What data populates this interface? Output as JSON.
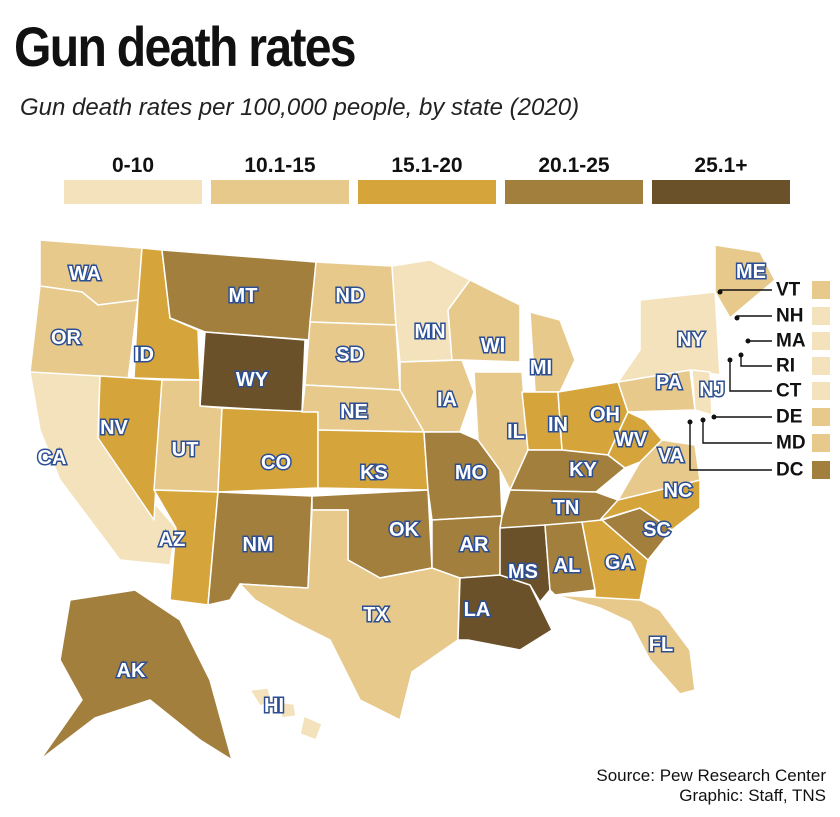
{
  "title": "Gun death rates",
  "subtitle": "Gun death rates per 100,000 people, by state (2020)",
  "legend": [
    {
      "label": "0-10",
      "color": "#f3e2bb"
    },
    {
      "label": "10.1-15",
      "color": "#e8c98c"
    },
    {
      "label": "15.1-20",
      "color": "#d5a53c"
    },
    {
      "label": "20.1-25",
      "color": "#a37f3e"
    },
    {
      "label": "25.1+",
      "color": "#6b5129"
    }
  ],
  "states": [
    {
      "abbr": "WA",
      "bin": 1
    },
    {
      "abbr": "OR",
      "bin": 1
    },
    {
      "abbr": "CA",
      "bin": 0
    },
    {
      "abbr": "NV",
      "bin": 2
    },
    {
      "abbr": "ID",
      "bin": 2
    },
    {
      "abbr": "MT",
      "bin": 3
    },
    {
      "abbr": "WY",
      "bin": 4
    },
    {
      "abbr": "UT",
      "bin": 1
    },
    {
      "abbr": "AZ",
      "bin": 2
    },
    {
      "abbr": "CO",
      "bin": 2
    },
    {
      "abbr": "NM",
      "bin": 3
    },
    {
      "abbr": "ND",
      "bin": 1
    },
    {
      "abbr": "SD",
      "bin": 1
    },
    {
      "abbr": "NE",
      "bin": 1
    },
    {
      "abbr": "KS",
      "bin": 2
    },
    {
      "abbr": "OK",
      "bin": 3
    },
    {
      "abbr": "TX",
      "bin": 1
    },
    {
      "abbr": "MN",
      "bin": 0
    },
    {
      "abbr": "IA",
      "bin": 1
    },
    {
      "abbr": "MO",
      "bin": 3
    },
    {
      "abbr": "AR",
      "bin": 3
    },
    {
      "abbr": "LA",
      "bin": 4
    },
    {
      "abbr": "WI",
      "bin": 1
    },
    {
      "abbr": "IL",
      "bin": 1
    },
    {
      "abbr": "MI",
      "bin": 1
    },
    {
      "abbr": "IN",
      "bin": 2
    },
    {
      "abbr": "OH",
      "bin": 2
    },
    {
      "abbr": "KY",
      "bin": 3
    },
    {
      "abbr": "TN",
      "bin": 3
    },
    {
      "abbr": "MS",
      "bin": 4
    },
    {
      "abbr": "AL",
      "bin": 3
    },
    {
      "abbr": "GA",
      "bin": 2
    },
    {
      "abbr": "FL",
      "bin": 1
    },
    {
      "abbr": "SC",
      "bin": 3
    },
    {
      "abbr": "NC",
      "bin": 2
    },
    {
      "abbr": "VA",
      "bin": 1
    },
    {
      "abbr": "WV",
      "bin": 2
    },
    {
      "abbr": "PA",
      "bin": 1
    },
    {
      "abbr": "NY",
      "bin": 0
    },
    {
      "abbr": "NJ",
      "bin": 0
    },
    {
      "abbr": "ME",
      "bin": 1
    },
    {
      "abbr": "AK",
      "bin": 3
    },
    {
      "abbr": "HI",
      "bin": 0
    }
  ],
  "callouts": [
    {
      "abbr": "VT",
      "bin": 1
    },
    {
      "abbr": "NH",
      "bin": 0
    },
    {
      "abbr": "MA",
      "bin": 0
    },
    {
      "abbr": "RI",
      "bin": 0
    },
    {
      "abbr": "CT",
      "bin": 0
    },
    {
      "abbr": "DE",
      "bin": 1
    },
    {
      "abbr": "MD",
      "bin": 1
    },
    {
      "abbr": "DC",
      "bin": 3
    }
  ],
  "source": "Source: Pew Research Center",
  "credit": "Graphic: Staff, TNS"
}
